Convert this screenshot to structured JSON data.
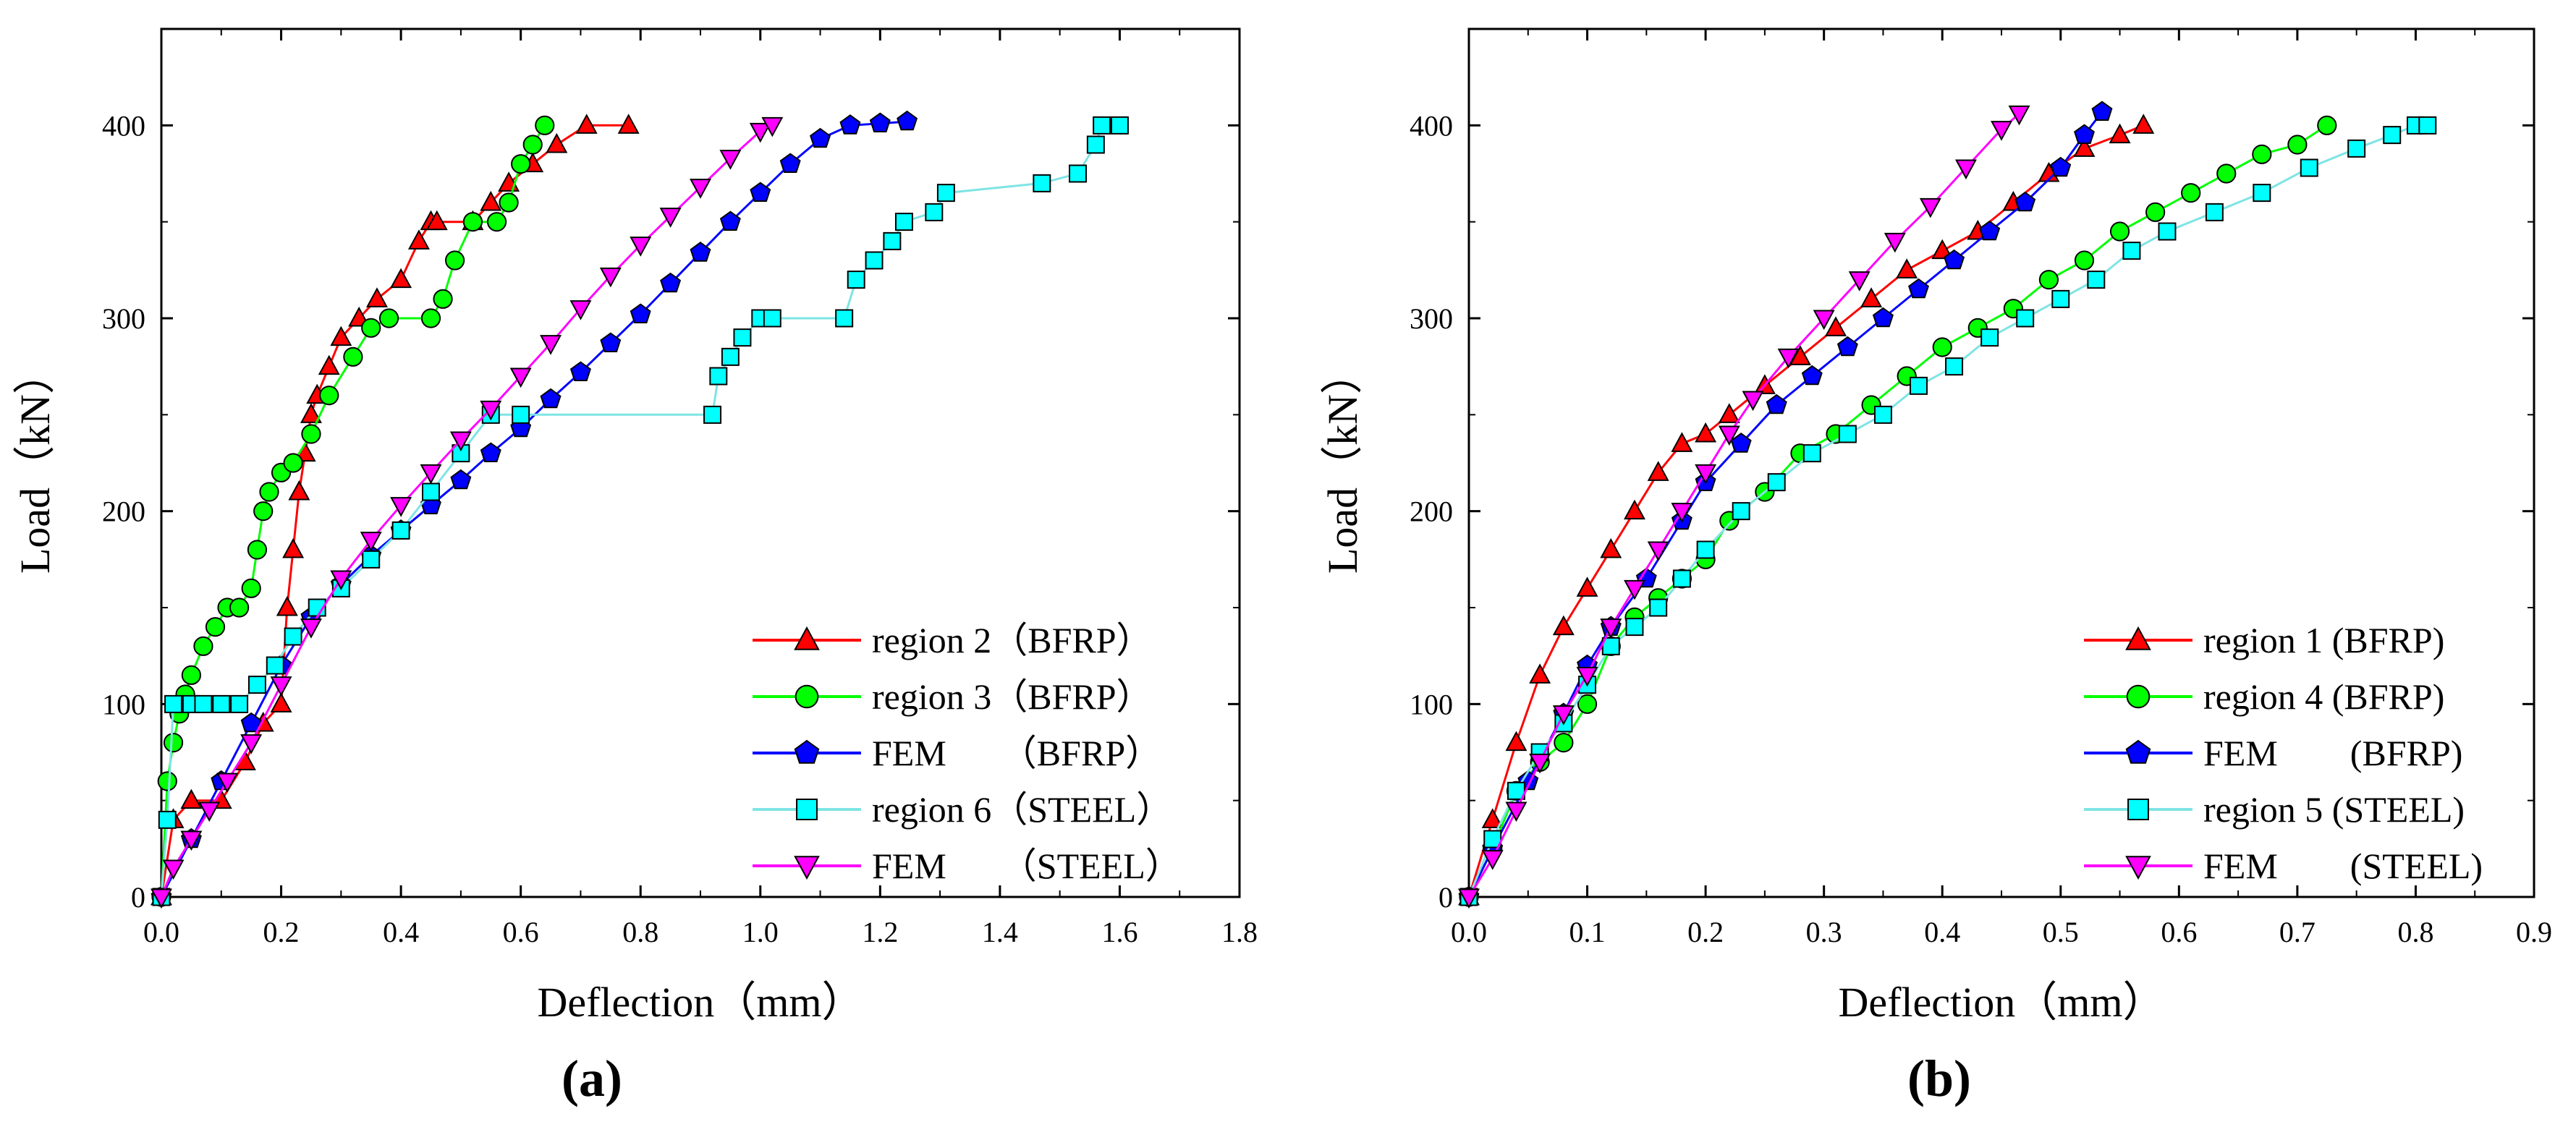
{
  "chart_data": [
    {
      "panel_label": "(a)",
      "type": "line",
      "xlabel": "Deflection（mm）",
      "ylabel": "Load（kN）",
      "xlim": [
        0,
        1.8
      ],
      "ylim": [
        0,
        450
      ],
      "xticks": [
        "0.0",
        "0.2",
        "0.4",
        "0.6",
        "0.8",
        "1.0",
        "1.2",
        "1.4",
        "1.6",
        "1.8"
      ],
      "yticks": [
        "0",
        "100",
        "200",
        "300",
        "400"
      ],
      "legend_position": "bottom-right",
      "series": [
        {
          "name": "region 2（BFRP）",
          "color": "#ff0000",
          "line_color": "#ff0000",
          "marker": "triangle-up",
          "x": [
            0.0,
            0.02,
            0.05,
            0.1,
            0.14,
            0.17,
            0.2,
            0.21,
            0.22,
            0.23,
            0.24,
            0.25,
            0.26,
            0.28,
            0.3,
            0.33,
            0.36,
            0.4,
            0.43,
            0.45,
            0.46,
            0.52,
            0.55,
            0.58,
            0.62,
            0.66,
            0.71,
            0.78
          ],
          "y": [
            0,
            40,
            50,
            50,
            70,
            90,
            100,
            150,
            180,
            210,
            230,
            250,
            260,
            275,
            290,
            300,
            310,
            320,
            340,
            350,
            350,
            350,
            360,
            370,
            380,
            390,
            400,
            400
          ]
        },
        {
          "name": "region 3（BFRP）",
          "color": "#00ff00",
          "line_color": "#00ff00",
          "marker": "circle",
          "x": [
            0.0,
            0.01,
            0.02,
            0.03,
            0.04,
            0.05,
            0.07,
            0.09,
            0.11,
            0.13,
            0.15,
            0.16,
            0.17,
            0.18,
            0.2,
            0.22,
            0.25,
            0.28,
            0.32,
            0.35,
            0.38,
            0.45,
            0.47,
            0.49,
            0.52,
            0.56,
            0.58,
            0.6,
            0.62,
            0.64
          ],
          "y": [
            0,
            60,
            80,
            95,
            105,
            115,
            130,
            140,
            150,
            150,
            160,
            180,
            200,
            210,
            220,
            225,
            240,
            260,
            280,
            295,
            300,
            300,
            310,
            330,
            350,
            350,
            360,
            380,
            390,
            400
          ]
        },
        {
          "name": "FEM　　（BFRP）",
          "color": "#0000ff",
          "line_color": "#0000ff",
          "marker": "pentagon",
          "x": [
            0.0,
            0.05,
            0.1,
            0.15,
            0.2,
            0.25,
            0.3,
            0.35,
            0.4,
            0.45,
            0.5,
            0.55,
            0.6,
            0.65,
            0.7,
            0.75,
            0.8,
            0.85,
            0.9,
            0.95,
            1.0,
            1.05,
            1.1,
            1.15,
            1.2,
            1.245
          ],
          "y": [
            0,
            30,
            60,
            90,
            120,
            145,
            162,
            177,
            190,
            203,
            216,
            230,
            243,
            258,
            272,
            287,
            302,
            318,
            334,
            350,
            365,
            380,
            393,
            400,
            401,
            402
          ]
        },
        {
          "name": "region 6（STEEL）",
          "color": "#00ffff",
          "line_color": "#7fe4e4",
          "marker": "square",
          "x": [
            0.0,
            0.01,
            0.02,
            0.05,
            0.07,
            0.1,
            0.13,
            0.16,
            0.19,
            0.22,
            0.26,
            0.3,
            0.35,
            0.4,
            0.45,
            0.5,
            0.55,
            0.6,
            0.92,
            0.93,
            0.95,
            0.97,
            1.0,
            1.02,
            1.14,
            1.16,
            1.19,
            1.22,
            1.24,
            1.29,
            1.31,
            1.47,
            1.53,
            1.56,
            1.57,
            1.6
          ],
          "y": [
            0,
            40,
            100,
            100,
            100,
            100,
            100,
            110,
            120,
            135,
            150,
            160,
            175,
            190,
            210,
            230,
            250,
            250,
            250,
            270,
            280,
            290,
            300,
            300,
            300,
            320,
            330,
            340,
            350,
            355,
            365,
            370,
            375,
            390,
            400,
            400
          ]
        },
        {
          "name": "FEM　　（STEEL）",
          "color": "#ff00ff",
          "line_color": "#ff00ff",
          "marker": "triangle-down",
          "x": [
            0.0,
            0.02,
            0.05,
            0.08,
            0.11,
            0.15,
            0.2,
            0.25,
            0.3,
            0.35,
            0.4,
            0.45,
            0.5,
            0.55,
            0.6,
            0.65,
            0.7,
            0.75,
            0.8,
            0.85,
            0.9,
            0.95,
            1.0,
            1.02
          ],
          "y": [
            0,
            15,
            30,
            45,
            60,
            80,
            110,
            140,
            165,
            185,
            203,
            220,
            237,
            253,
            270,
            287,
            305,
            322,
            338,
            353,
            368,
            383,
            397,
            400
          ]
        }
      ]
    },
    {
      "panel_label": "(b)",
      "type": "line",
      "xlabel": "Deflection（mm）",
      "ylabel": "Load（kN）",
      "xlim": [
        0,
        0.9
      ],
      "ylim": [
        0,
        450
      ],
      "xticks": [
        "0.0",
        "0.1",
        "0.2",
        "0.3",
        "0.4",
        "0.5",
        "0.6",
        "0.7",
        "0.8",
        "0.9"
      ],
      "yticks": [
        "0",
        "100",
        "200",
        "300",
        "400"
      ],
      "legend_position": "bottom-right",
      "series": [
        {
          "name": "region 1 (BFRP)",
          "color": "#ff0000",
          "line_color": "#ff0000",
          "marker": "triangle-up",
          "x": [
            0.0,
            0.02,
            0.04,
            0.06,
            0.08,
            0.1,
            0.12,
            0.14,
            0.16,
            0.18,
            0.2,
            0.22,
            0.25,
            0.28,
            0.31,
            0.34,
            0.37,
            0.4,
            0.43,
            0.46,
            0.49,
            0.52,
            0.55,
            0.57
          ],
          "y": [
            0,
            40,
            80,
            115,
            140,
            160,
            180,
            200,
            220,
            235,
            240,
            250,
            265,
            280,
            295,
            310,
            325,
            335,
            345,
            360,
            375,
            388,
            395,
            400
          ]
        },
        {
          "name": "region 4 (BFRP)",
          "color": "#00ff00",
          "line_color": "#00ff00",
          "marker": "circle",
          "x": [
            0.0,
            0.02,
            0.04,
            0.06,
            0.08,
            0.1,
            0.12,
            0.14,
            0.16,
            0.18,
            0.2,
            0.22,
            0.25,
            0.28,
            0.31,
            0.34,
            0.37,
            0.4,
            0.43,
            0.46,
            0.49,
            0.52,
            0.55,
            0.58,
            0.61,
            0.64,
            0.67,
            0.7,
            0.725
          ],
          "y": [
            0,
            25,
            55,
            70,
            80,
            100,
            130,
            145,
            155,
            165,
            175,
            195,
            210,
            230,
            240,
            255,
            270,
            285,
            295,
            305,
            320,
            330,
            345,
            355,
            365,
            375,
            385,
            390,
            400
          ]
        },
        {
          "name": "FEM　　(BFRP)",
          "color": "#0000ff",
          "line_color": "#0000ff",
          "marker": "pentagon",
          "x": [
            0.0,
            0.02,
            0.05,
            0.08,
            0.1,
            0.12,
            0.15,
            0.18,
            0.2,
            0.23,
            0.26,
            0.29,
            0.32,
            0.35,
            0.38,
            0.41,
            0.44,
            0.47,
            0.5,
            0.52,
            0.535
          ],
          "y": [
            0,
            25,
            60,
            95,
            120,
            140,
            165,
            195,
            215,
            235,
            255,
            270,
            285,
            300,
            315,
            330,
            345,
            360,
            378,
            395,
            407
          ]
        },
        {
          "name": "region 5 (STEEL)",
          "color": "#00ffff",
          "line_color": "#7fe4e4",
          "marker": "square",
          "x": [
            0.0,
            0.02,
            0.04,
            0.06,
            0.08,
            0.1,
            0.12,
            0.14,
            0.16,
            0.18,
            0.2,
            0.23,
            0.26,
            0.29,
            0.32,
            0.35,
            0.38,
            0.41,
            0.44,
            0.47,
            0.5,
            0.53,
            0.56,
            0.59,
            0.63,
            0.67,
            0.71,
            0.75,
            0.78,
            0.8,
            0.81
          ],
          "y": [
            0,
            30,
            55,
            75,
            90,
            110,
            130,
            140,
            150,
            165,
            180,
            200,
            215,
            230,
            240,
            250,
            265,
            275,
            290,
            300,
            310,
            320,
            335,
            345,
            355,
            365,
            378,
            388,
            395,
            400,
            400
          ]
        },
        {
          "name": "FEM　　(STEEL)",
          "color": "#ff00ff",
          "line_color": "#ff00ff",
          "marker": "triangle-down",
          "x": [
            0.0,
            0.02,
            0.04,
            0.06,
            0.08,
            0.1,
            0.12,
            0.14,
            0.16,
            0.18,
            0.2,
            0.22,
            0.24,
            0.27,
            0.3,
            0.33,
            0.36,
            0.39,
            0.42,
            0.45,
            0.465
          ],
          "y": [
            0,
            20,
            45,
            70,
            95,
            115,
            140,
            160,
            180,
            200,
            220,
            240,
            258,
            280,
            300,
            320,
            340,
            358,
            378,
            398,
            406
          ]
        }
      ]
    }
  ]
}
